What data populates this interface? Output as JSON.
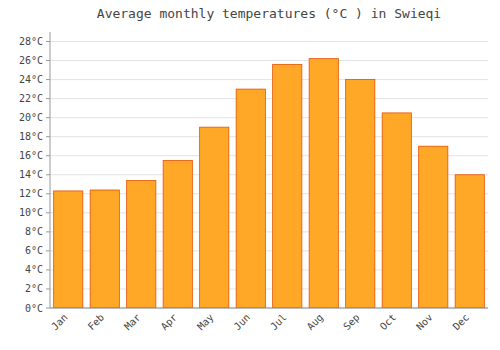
{
  "chart_data": {
    "type": "bar",
    "title": "Average monthly temperatures (°C ) in Swieqi",
    "categories": [
      "Jan",
      "Feb",
      "Mar",
      "Apr",
      "May",
      "Jun",
      "Jul",
      "Aug",
      "Sep",
      "Oct",
      "Nov",
      "Dec"
    ],
    "values": [
      12.3,
      12.4,
      13.4,
      15.5,
      19.0,
      23.0,
      25.6,
      26.2,
      24.0,
      20.5,
      17.0,
      14.0
    ],
    "color": "#FFA726",
    "ylim": [
      0,
      29
    ],
    "yticks": [
      {
        "value": 0,
        "label": "0°C"
      },
      {
        "value": 2,
        "label": "2°C"
      },
      {
        "value": 4,
        "label": "4°C"
      },
      {
        "value": 6,
        "label": "6°C"
      },
      {
        "value": 8,
        "label": "8°C"
      },
      {
        "value": 10,
        "label": "10°C"
      },
      {
        "value": 12,
        "label": "12°C"
      },
      {
        "value": 14,
        "label": "14°C"
      },
      {
        "value": 16,
        "label": "16°C"
      },
      {
        "value": 18,
        "label": "18°C"
      },
      {
        "value": 20,
        "label": "20°C"
      },
      {
        "value": 22,
        "label": "22°C"
      },
      {
        "value": 24,
        "label": "24°C"
      },
      {
        "value": 26,
        "label": "26°C"
      },
      {
        "value": 28,
        "label": "28°C"
      }
    ],
    "grid": true
  }
}
